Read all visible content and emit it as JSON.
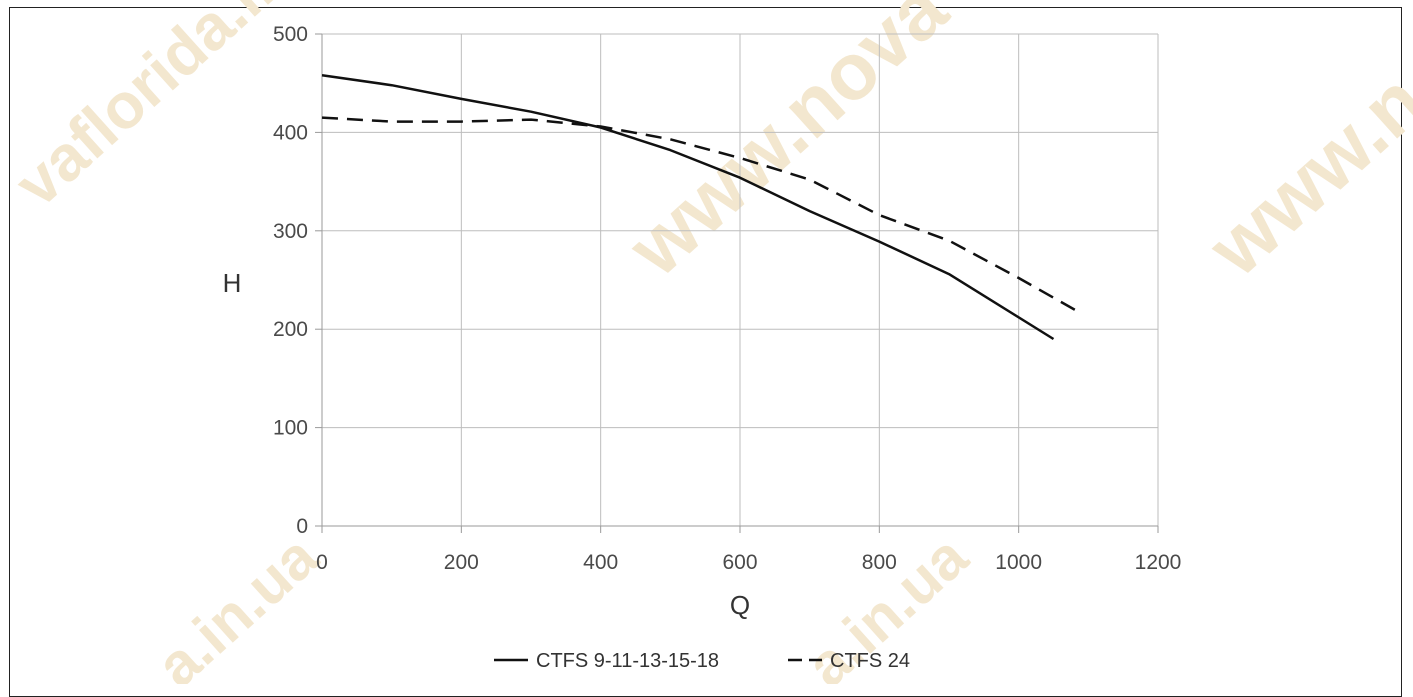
{
  "watermarks": [
    "vaflorida.in.ua",
    "www.nova",
    "www.n",
    "a.in.ua",
    "a.in.ua"
  ],
  "chart_data": {
    "type": "line",
    "title": "",
    "xlabel": "Q",
    "ylabel": "H",
    "xlim": [
      0,
      1200
    ],
    "ylim": [
      0,
      500
    ],
    "x_ticks": [
      "0",
      "200",
      "400",
      "600",
      "800",
      "1000",
      "1200"
    ],
    "y_ticks": [
      "0",
      "100",
      "200",
      "300",
      "400",
      "500"
    ],
    "grid": true,
    "legend_position": "bottom",
    "series": [
      {
        "name": "CTFS 9-11-13-15-18",
        "style": "solid",
        "color": "#111111",
        "points": [
          [
            0,
            458
          ],
          [
            100,
            448
          ],
          [
            200,
            434
          ],
          [
            300,
            421
          ],
          [
            400,
            405
          ],
          [
            500,
            382
          ],
          [
            600,
            354
          ],
          [
            700,
            320
          ],
          [
            800,
            289
          ],
          [
            900,
            256
          ],
          [
            1050,
            190
          ]
        ]
      },
      {
        "name": "CTFS 24",
        "style": "dashed",
        "color": "#111111",
        "points": [
          [
            0,
            415
          ],
          [
            100,
            411
          ],
          [
            200,
            411
          ],
          [
            300,
            413
          ],
          [
            400,
            406
          ],
          [
            500,
            393
          ],
          [
            600,
            374
          ],
          [
            700,
            352
          ],
          [
            800,
            316
          ],
          [
            900,
            290
          ],
          [
            1000,
            252
          ],
          [
            1090,
            216
          ]
        ]
      }
    ]
  }
}
